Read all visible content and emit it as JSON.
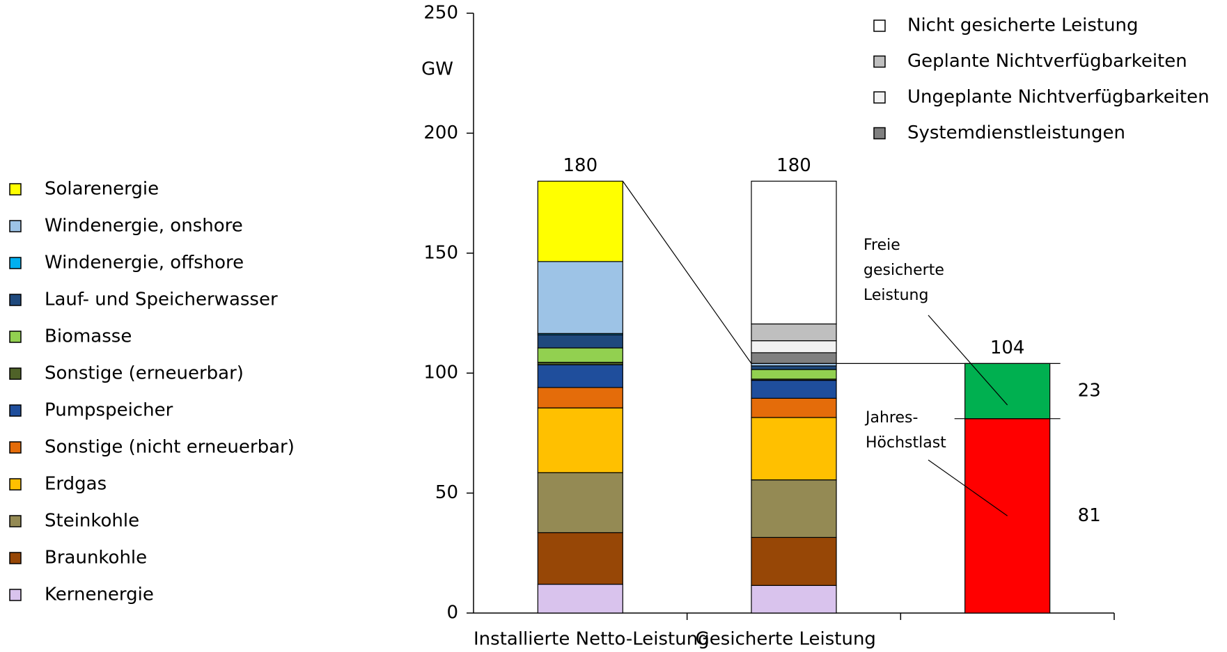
{
  "chart_data": {
    "type": "stacked_bar",
    "y_label": "GW",
    "categories": [
      "Installierte Netto-Leistung",
      "Gesicherte Leistung",
      null
    ],
    "ylim": [
      0,
      250
    ],
    "yticks": [
      0,
      50,
      100,
      150,
      200,
      250
    ],
    "totals": [
      180,
      180,
      104
    ],
    "series": [
      {
        "name": "Kernenergie",
        "color": "#d9c3ed",
        "legend": "left",
        "values": [
          12,
          11.5,
          0
        ]
      },
      {
        "name": "Braunkohle",
        "color": "#974706",
        "legend": "left",
        "values": [
          21.5,
          20,
          0
        ]
      },
      {
        "name": "Steinkohle",
        "color": "#948a54",
        "legend": "left",
        "values": [
          25,
          24,
          0
        ]
      },
      {
        "name": "Erdgas",
        "color": "#ffc000",
        "legend": "left",
        "values": [
          27,
          26,
          0
        ]
      },
      {
        "name": "Sonstige (nicht erneuerbar)",
        "color": "#e46c0a",
        "legend": "left",
        "values": [
          8.5,
          8,
          0
        ]
      },
      {
        "name": "Pumpspeicher",
        "color": "#1f4e9c",
        "legend": "left",
        "values": [
          9.5,
          7.5,
          0
        ]
      },
      {
        "name": "Sonstige (erneuerbar)",
        "color": "#4f6228",
        "legend": "left",
        "values": [
          1,
          0.5,
          0
        ]
      },
      {
        "name": "Biomasse",
        "color": "#92d050",
        "legend": "left",
        "values": [
          6,
          4,
          0
        ]
      },
      {
        "name": "Lauf- und Speicherwasser",
        "color": "#1f497d",
        "legend": "left",
        "values": [
          5.5,
          1.5,
          0
        ]
      },
      {
        "name": "Windenergie, offshore",
        "color": "#00b0f0",
        "legend": "left",
        "values": [
          0.5,
          0,
          0
        ]
      },
      {
        "name": "Windenergie, onshore",
        "color": "#9dc3e6",
        "legend": "left",
        "values": [
          30,
          1,
          0
        ]
      },
      {
        "name": "Solarenergie",
        "color": "#ffff00",
        "legend": "left",
        "values": [
          33.5,
          0,
          0
        ]
      },
      {
        "name": "Systemdienstleistungen",
        "color": "#808080",
        "legend": "right",
        "values": [
          0,
          4.5,
          0
        ]
      },
      {
        "name": "Ungeplante Nichtverfügbarkeiten",
        "color": "#f2f2f2",
        "legend": "right",
        "values": [
          0,
          5,
          0
        ]
      },
      {
        "name": "Geplante Nichtverfügbarkeiten",
        "color": "#bfbfbf",
        "legend": "right",
        "values": [
          0,
          7,
          0
        ]
      },
      {
        "name": "Nicht gesicherte Leistung",
        "color": "#ffffff",
        "legend": "right",
        "values": [
          0,
          59.5,
          0
        ]
      },
      {
        "name": "Jahres-Höchstlast",
        "color": "#ff0000",
        "values": [
          0,
          0,
          81
        ]
      },
      {
        "name": "Freie gesicherte Leistung",
        "color": "#00b050",
        "values": [
          0,
          0,
          23
        ]
      }
    ]
  }
}
